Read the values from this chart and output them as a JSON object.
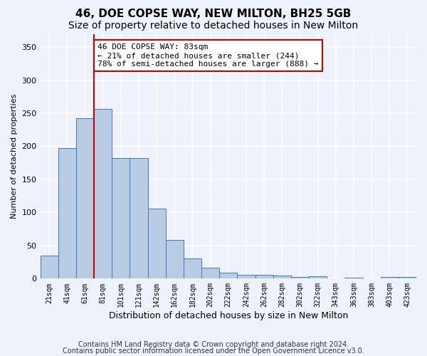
{
  "title": "46, DOE COPSE WAY, NEW MILTON, BH25 5GB",
  "subtitle": "Size of property relative to detached houses in New Milton",
  "xlabel": "Distribution of detached houses by size in New Milton",
  "ylabel": "Number of detached properties",
  "categories": [
    "21sqm",
    "41sqm",
    "61sqm",
    "81sqm",
    "101sqm",
    "121sqm",
    "142sqm",
    "162sqm",
    "182sqm",
    "202sqm",
    "222sqm",
    "242sqm",
    "262sqm",
    "282sqm",
    "302sqm",
    "322sqm",
    "343sqm",
    "363sqm",
    "383sqm",
    "403sqm",
    "423sqm"
  ],
  "values": [
    35,
    197,
    243,
    256,
    182,
    182,
    106,
    58,
    30,
    17,
    9,
    6,
    6,
    5,
    2,
    4,
    0,
    1,
    0,
    2,
    2
  ],
  "bar_color": "#b8cce4",
  "bar_edge_color": "#4472c4",
  "red_line_x": 2.5,
  "red_line_color": "#cc0000",
  "annotation_line1": "46 DOE COPSE WAY: 83sqm",
  "annotation_line2": "← 21% of detached houses are smaller (244)",
  "annotation_line3": "78% of semi-detached houses are larger (888) →",
  "annotation_box_color": "#cc0000",
  "ylim": [
    0,
    370
  ],
  "yticks": [
    0,
    50,
    100,
    150,
    200,
    250,
    300,
    350
  ],
  "footer_line1": "Contains HM Land Registry data © Crown copyright and database right 2024.",
  "footer_line2": "Contains public sector information licensed under the Open Government Licence v3.0.",
  "background_color": "#eef2fa",
  "grid_color": "#ffffff",
  "title_fontsize": 11,
  "subtitle_fontsize": 10,
  "xlabel_fontsize": 9,
  "ylabel_fontsize": 8,
  "annotation_fontsize": 8,
  "footer_fontsize": 7
}
